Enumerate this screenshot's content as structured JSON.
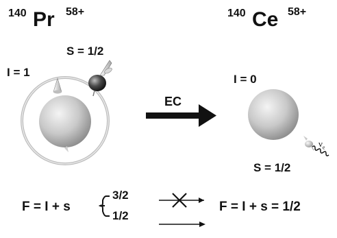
{
  "left": {
    "mass_number": "140",
    "element": "Pr",
    "charge": "58+",
    "nuclear_spin": "I = 1",
    "electron_spin": "S = 1/2"
  },
  "right": {
    "mass_number": "140",
    "element": "Ce",
    "charge": "58+",
    "nuclear_spin": "I = 0",
    "electron_spin": "S = 1/2",
    "neutrino": "ν",
    "neutrino_sub": "e"
  },
  "process_label": "EC",
  "bottom": {
    "left_formula": "F = I + s",
    "branch_upper": "3/2",
    "branch_lower": "1/2",
    "right_formula": "F = I + s = 1/2"
  },
  "colors": {
    "ink": "#111111",
    "sphere_light": "#f2f2f2",
    "sphere_dark": "#8a8a8a"
  }
}
